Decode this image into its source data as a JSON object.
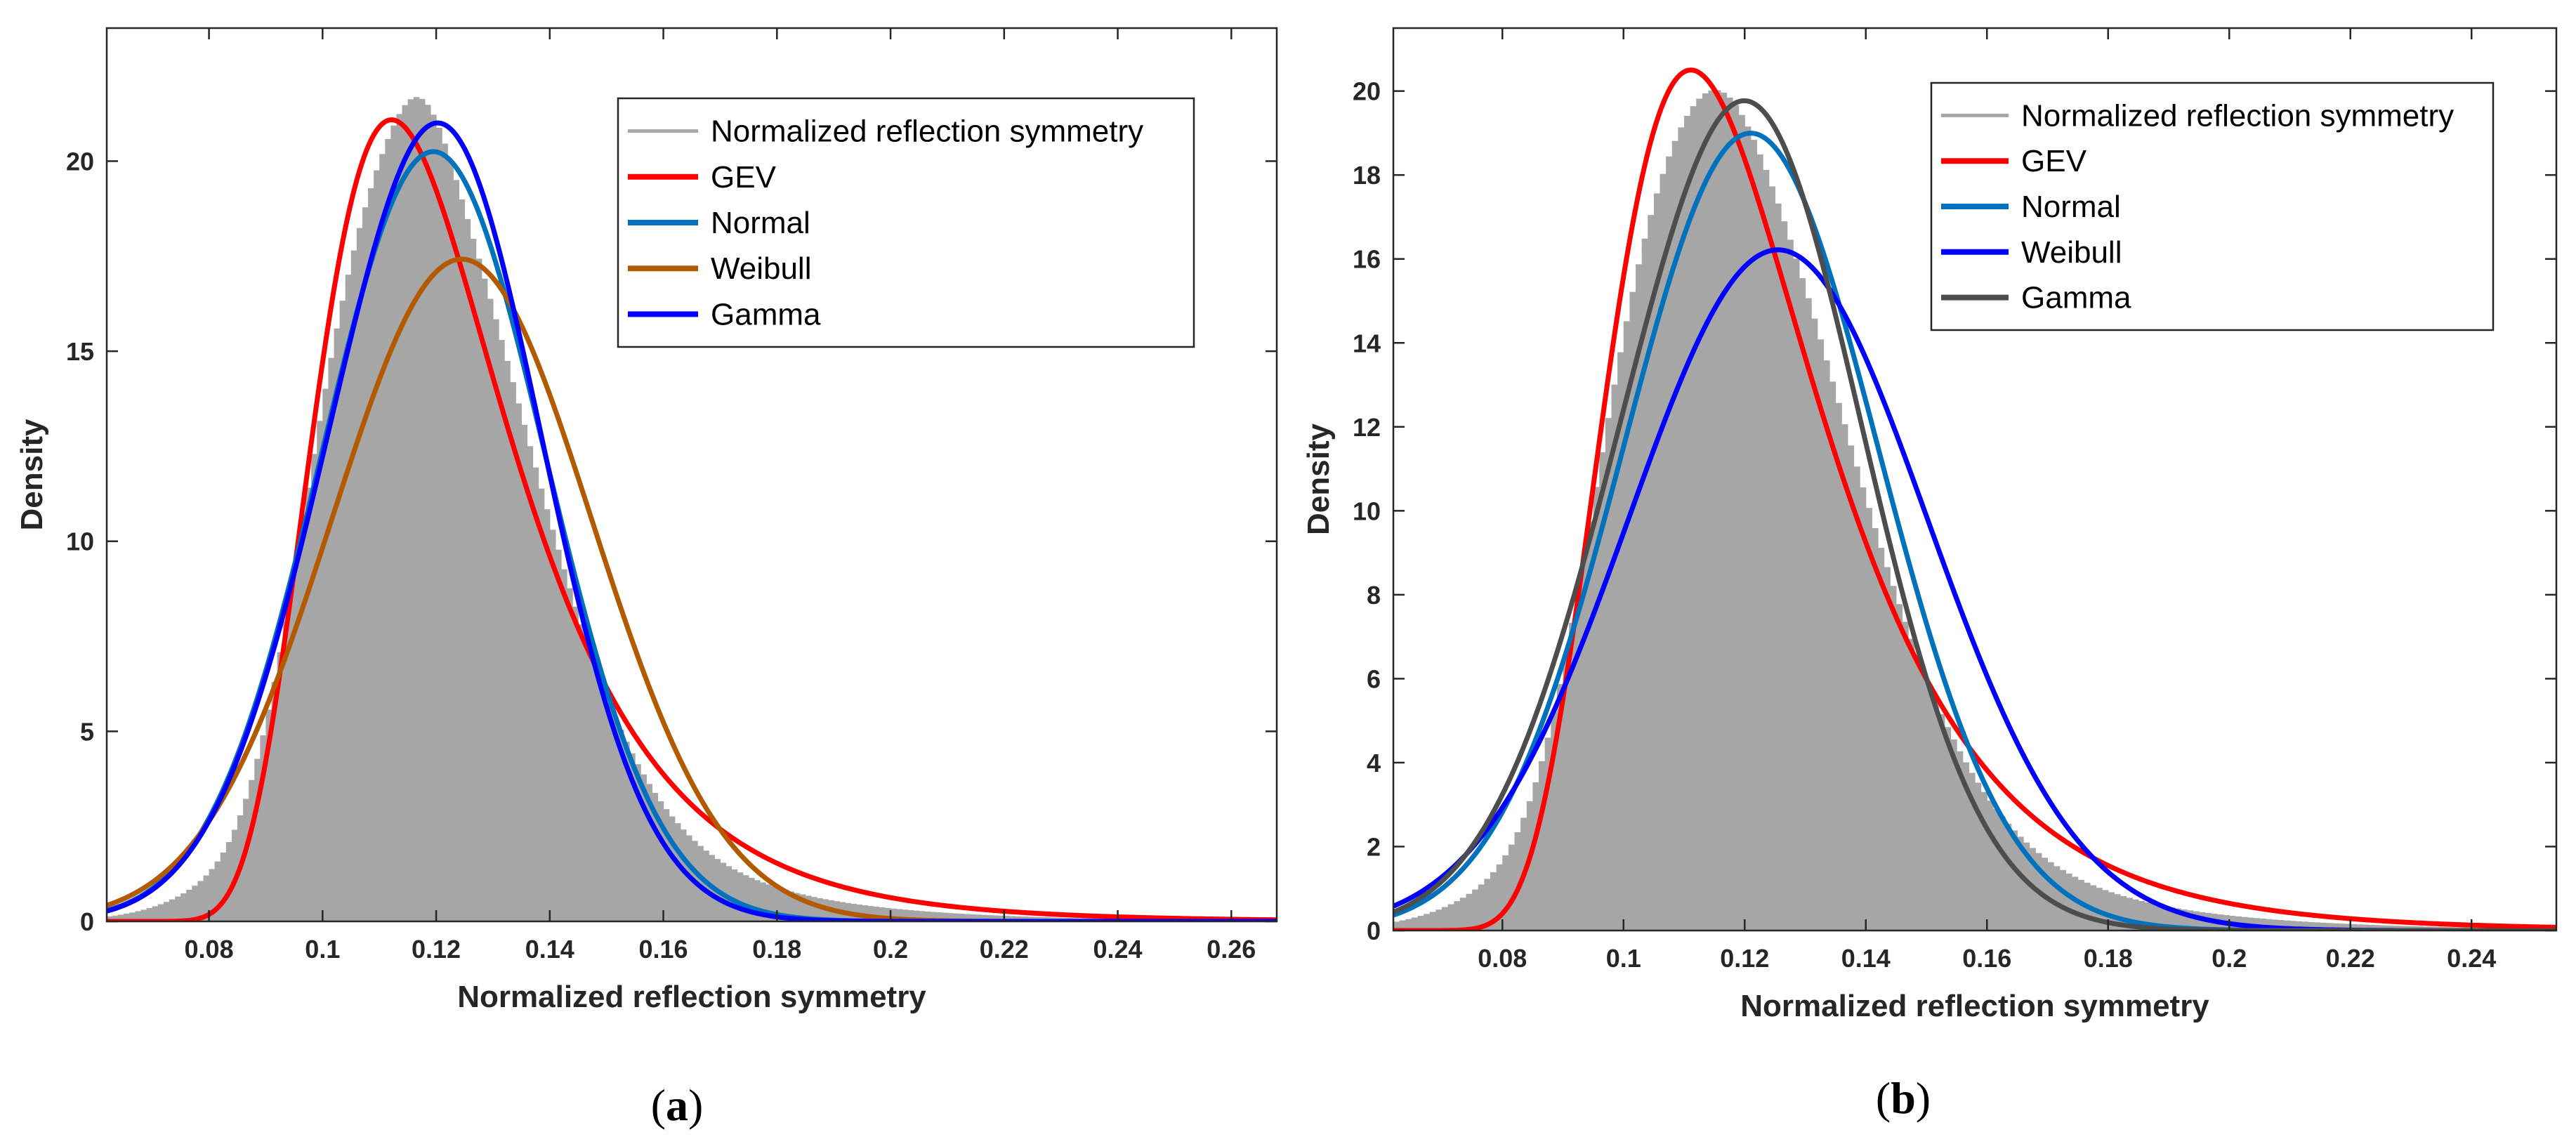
{
  "chart_data": [
    {
      "type": "line",
      "panel_label": "a",
      "xlabel": "Normalized reflection symmetry",
      "ylabel": "Density",
      "xlim": [
        0.062,
        0.268
      ],
      "ylim": [
        0,
        23.5
      ],
      "xticks": [
        "0.08",
        "0.1",
        "0.12",
        "0.14",
        "0.16",
        "0.18",
        "0.2",
        "0.22",
        "0.24",
        "0.26"
      ],
      "yticks": [
        "0",
        "5",
        "10",
        "15",
        "20"
      ],
      "legend_position": "top-right",
      "histogram": {
        "name": "Normalized reflection symmetry",
        "color": "#a6a6a6",
        "bin_width": 0.001,
        "x_start": 0.062,
        "x_end": 0.268,
        "peak_bump": 1.2
      },
      "series": [
        {
          "name": "Normalized reflection symmetry",
          "color": "#a6a6a6",
          "kind": "histogram"
        },
        {
          "name": "GEV",
          "color": "#ff0000",
          "kind": "gev",
          "mu": 0.1135,
          "sigma": 0.0175,
          "xi": 0.08
        },
        {
          "name": "Normal",
          "color": "#0072bd",
          "kind": "normal",
          "mu": 0.1195,
          "sigma": 0.0197
        },
        {
          "name": "Weibull",
          "color": "#b35900",
          "kind": "normal",
          "mu": 0.1245,
          "sigma": 0.0229
        },
        {
          "name": "Gamma",
          "color": "#0000ff",
          "kind": "normal",
          "mu": 0.1175,
          "sigma": 0.0192,
          "skew": 0.3
        }
      ]
    },
    {
      "type": "line",
      "panel_label": "b",
      "xlabel": "Normalized reflection symmetry",
      "ylabel": "Density",
      "xlim": [
        0.062,
        0.254
      ],
      "ylim": [
        0,
        21.5
      ],
      "xticks": [
        "0.08",
        "0.1",
        "0.12",
        "0.14",
        "0.16",
        "0.18",
        "0.2",
        "0.22",
        "0.24"
      ],
      "yticks": [
        "0",
        "2",
        "4",
        "6",
        "8",
        "10",
        "12",
        "14",
        "16",
        "18",
        "20"
      ],
      "legend_position": "top-right",
      "histogram": {
        "name": "Normalized reflection symmetry",
        "color": "#a6a6a6",
        "bin_width": 0.001,
        "x_start": 0.062,
        "x_end": 0.254,
        "peak_bump": 0.4
      },
      "series": [
        {
          "name": "Normalized reflection symmetry",
          "color": "#a6a6a6",
          "kind": "histogram"
        },
        {
          "name": "GEV",
          "color": "#ff0000",
          "kind": "gev",
          "mu": 0.1125,
          "sigma": 0.018,
          "xi": 0.08
        },
        {
          "name": "Normal",
          "color": "#0072bd",
          "kind": "normal",
          "mu": 0.121,
          "sigma": 0.021
        },
        {
          "name": "Weibull",
          "color": "#0000ff",
          "kind": "normal",
          "mu": 0.1255,
          "sigma": 0.0246
        },
        {
          "name": "Gamma",
          "color": "#4d4d4d",
          "kind": "normal",
          "mu": 0.117,
          "sigma": 0.0204,
          "skew": 0.3
        }
      ]
    }
  ]
}
